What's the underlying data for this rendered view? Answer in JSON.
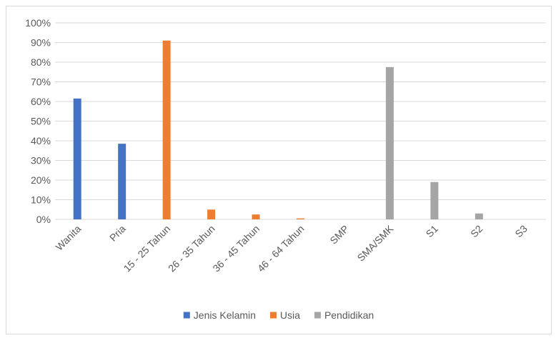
{
  "chart_data": {
    "type": "bar",
    "categories": [
      "Wanita",
      "Pria",
      "15 - 25 Tahun",
      "26 - 35 Tahun",
      "36 - 45 Tahun",
      "46 - 64 Tahun",
      "SMP",
      "SMA/SMK",
      "S1",
      "S2",
      "S3"
    ],
    "series": [
      {
        "name": "Jenis Kelamin",
        "color": "#4472C4",
        "values": [
          61.5,
          38.5,
          null,
          null,
          null,
          null,
          null,
          null,
          null,
          null,
          null
        ]
      },
      {
        "name": "Usia",
        "color": "#ED7D31",
        "values": [
          null,
          null,
          91,
          5,
          2.5,
          0.5,
          null,
          null,
          null,
          null,
          null
        ]
      },
      {
        "name": "Pendidikan",
        "color": "#A5A5A5",
        "values": [
          null,
          null,
          null,
          null,
          null,
          null,
          0,
          77.5,
          19,
          3,
          0
        ]
      }
    ],
    "y_ticks": [
      "0%",
      "10%",
      "20%",
      "30%",
      "40%",
      "50%",
      "60%",
      "70%",
      "80%",
      "90%",
      "100%"
    ],
    "ylim": [
      0,
      100
    ],
    "grid": true,
    "legend_position": "bottom"
  }
}
